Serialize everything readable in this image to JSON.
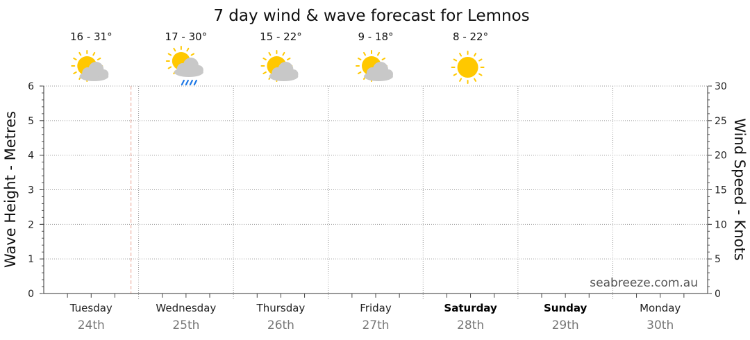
{
  "page": {
    "title": "7 day wind & wave forecast for Lemnos",
    "watermark": "seabreeze.com.au"
  },
  "chart_data": {
    "type": "line",
    "title": "7 day wind & wave forecast for Lemnos",
    "ylabel_left": "Wave Height - Metres",
    "ylabel_right": "Wind Speed - Knots",
    "ylim_left": [
      0,
      6
    ],
    "ylim_right": [
      0,
      30
    ],
    "yticks_left": [
      "0",
      "1",
      "2",
      "3",
      "4",
      "5",
      "6"
    ],
    "yticks_right": [
      "0",
      "5",
      "10",
      "15",
      "20",
      "25",
      "30"
    ],
    "grid": true,
    "current_time_marker": {
      "day_index": 0,
      "fraction_of_day": 0.92
    },
    "days": [
      {
        "name": "Tuesday",
        "date": "24th",
        "weekend": false,
        "temp": "16 - 31°",
        "icon": "partly-cloudy-icon"
      },
      {
        "name": "Wednesday",
        "date": "25th",
        "weekend": false,
        "temp": "17 - 30°",
        "icon": "showers-icon"
      },
      {
        "name": "Thursday",
        "date": "26th",
        "weekend": false,
        "temp": "15 - 22°",
        "icon": "partly-cloudy-icon"
      },
      {
        "name": "Friday",
        "date": "27th",
        "weekend": false,
        "temp": "9 - 18°",
        "icon": "partly-cloudy-icon"
      },
      {
        "name": "Saturday",
        "date": "28th",
        "weekend": true,
        "temp": "8 - 22°",
        "icon": "sunny-icon"
      },
      {
        "name": "Sunday",
        "date": "29th",
        "weekend": true,
        "temp": "",
        "icon": ""
      },
      {
        "name": "Monday",
        "date": "30th",
        "weekend": false,
        "temp": "",
        "icon": ""
      }
    ],
    "series": []
  },
  "colors": {
    "sun": "#ffc800",
    "sun_rays": "#ffc800",
    "cloud": "#c8c8c8",
    "rain": "#1e78e6",
    "grid": "#9a9a9a",
    "now_marker": "#e8a090"
  }
}
